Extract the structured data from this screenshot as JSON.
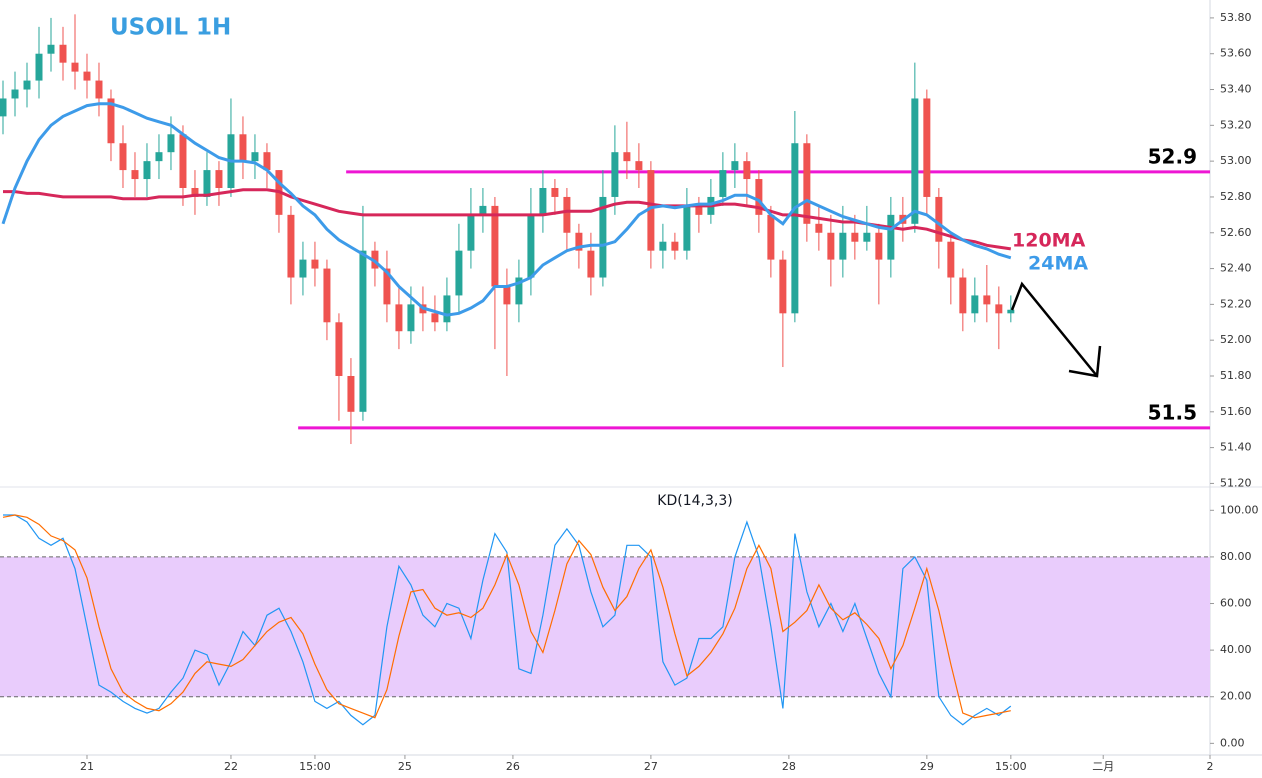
{
  "chart_data": [
    {
      "type": "candlestick",
      "title": "USOIL 1H",
      "x": [
        0,
        1,
        2,
        3,
        4,
        5,
        6,
        7,
        8,
        9,
        10,
        11,
        12,
        13,
        14,
        15,
        16,
        17,
        18,
        19,
        20,
        21,
        22,
        23,
        24,
        25,
        26,
        27,
        28,
        29,
        30,
        31,
        32,
        33,
        34,
        35,
        36,
        37,
        38,
        39,
        40,
        41,
        42,
        43,
        44,
        45,
        46,
        47,
        48,
        49,
        50,
        51,
        52,
        53,
        54,
        55,
        56,
        57,
        58,
        59,
        60,
        61,
        62,
        63,
        64,
        65,
        66,
        67,
        68,
        69,
        70,
        71,
        72,
        73,
        74,
        75,
        76,
        77,
        78,
        79,
        80,
        81,
        82,
        83,
        84
      ],
      "open": [
        53.25,
        53.35,
        53.4,
        53.45,
        53.6,
        53.65,
        53.55,
        53.5,
        53.45,
        53.35,
        53.1,
        52.95,
        52.9,
        53.0,
        53.05,
        53.15,
        52.85,
        52.8,
        52.95,
        52.85,
        53.15,
        53.0,
        53.05,
        52.95,
        52.7,
        52.35,
        52.45,
        52.4,
        52.1,
        51.8,
        51.6,
        52.5,
        52.4,
        52.2,
        52.05,
        52.2,
        52.15,
        52.1,
        52.25,
        52.5,
        52.7,
        52.75,
        52.3,
        52.2,
        52.35,
        52.7,
        52.85,
        52.8,
        52.6,
        52.5,
        52.35,
        52.8,
        53.05,
        53.0,
        52.95,
        52.5,
        52.55,
        52.5,
        52.75,
        52.7,
        52.8,
        52.95,
        53.0,
        52.9,
        52.7,
        52.45,
        52.15,
        53.1,
        52.65,
        52.6,
        52.45,
        52.6,
        52.55,
        52.6,
        52.45,
        52.7,
        52.65,
        53.35,
        52.8,
        52.55,
        52.35,
        52.15,
        52.25,
        52.2,
        52.15
      ],
      "high": [
        53.45,
        53.5,
        53.55,
        53.75,
        53.8,
        53.75,
        53.82,
        53.6,
        53.55,
        53.4,
        53.2,
        53.05,
        53.1,
        53.15,
        53.25,
        53.2,
        52.95,
        53.05,
        53.0,
        53.35,
        53.25,
        53.15,
        53.1,
        52.95,
        52.75,
        52.55,
        52.55,
        52.45,
        52.15,
        51.9,
        52.75,
        52.55,
        52.5,
        52.3,
        52.3,
        52.3,
        52.25,
        52.35,
        52.65,
        52.85,
        52.85,
        52.8,
        52.4,
        52.45,
        52.85,
        52.95,
        52.9,
        52.85,
        52.65,
        52.6,
        52.95,
        53.2,
        53.22,
        53.1,
        53.0,
        52.65,
        52.6,
        52.85,
        52.8,
        52.9,
        53.05,
        53.1,
        53.05,
        52.95,
        52.75,
        52.5,
        53.28,
        53.15,
        52.75,
        52.7,
        52.75,
        52.7,
        52.75,
        52.65,
        52.8,
        52.8,
        53.55,
        53.4,
        52.85,
        52.6,
        52.4,
        52.35,
        52.42,
        52.3,
        52.25
      ],
      "low": [
        53.15,
        53.25,
        53.3,
        53.35,
        53.5,
        53.45,
        53.4,
        53.35,
        53.25,
        53.0,
        52.85,
        52.8,
        52.8,
        52.9,
        52.95,
        52.75,
        52.7,
        52.75,
        52.75,
        52.8,
        52.9,
        52.9,
        52.85,
        52.6,
        52.2,
        52.25,
        52.3,
        52.0,
        51.55,
        51.42,
        51.55,
        52.3,
        52.1,
        51.95,
        51.98,
        52.05,
        52.05,
        52.05,
        52.15,
        52.4,
        52.6,
        51.95,
        51.8,
        52.1,
        52.25,
        52.6,
        52.7,
        52.5,
        52.4,
        52.25,
        52.3,
        52.7,
        52.9,
        52.85,
        52.4,
        52.4,
        52.45,
        52.45,
        52.6,
        52.65,
        52.75,
        52.85,
        52.75,
        52.6,
        52.35,
        51.85,
        52.1,
        52.55,
        52.5,
        52.3,
        52.35,
        52.45,
        52.5,
        52.2,
        52.35,
        52.55,
        52.6,
        52.7,
        52.4,
        52.2,
        52.05,
        52.1,
        52.1,
        51.95,
        52.1
      ],
      "close": [
        53.35,
        53.4,
        53.45,
        53.6,
        53.65,
        53.55,
        53.5,
        53.45,
        53.35,
        53.1,
        52.95,
        52.9,
        53.0,
        53.05,
        53.15,
        52.85,
        52.8,
        52.95,
        52.85,
        53.15,
        53.0,
        53.05,
        52.95,
        52.7,
        52.35,
        52.45,
        52.4,
        52.1,
        51.8,
        51.6,
        52.5,
        52.4,
        52.2,
        52.05,
        52.2,
        52.15,
        52.1,
        52.25,
        52.5,
        52.7,
        52.75,
        52.3,
        52.2,
        52.35,
        52.7,
        52.85,
        52.8,
        52.6,
        52.5,
        52.35,
        52.8,
        53.05,
        53.0,
        52.95,
        52.5,
        52.55,
        52.5,
        52.75,
        52.7,
        52.8,
        52.95,
        53.0,
        52.9,
        52.7,
        52.45,
        52.15,
        53.1,
        52.65,
        52.6,
        52.45,
        52.6,
        52.55,
        52.6,
        52.45,
        52.7,
        52.65,
        53.35,
        52.8,
        52.55,
        52.35,
        52.15,
        52.25,
        52.2,
        52.15,
        52.17
      ],
      "up_color": "#26a69a",
      "down_color": "#ef5350",
      "overlays": [
        {
          "name": "120MA",
          "color": "#d6275a",
          "values": [
            52.83,
            52.83,
            52.82,
            52.82,
            52.81,
            52.8,
            52.8,
            52.8,
            52.8,
            52.8,
            52.79,
            52.79,
            52.79,
            52.8,
            52.8,
            52.8,
            52.81,
            52.81,
            52.82,
            52.83,
            52.84,
            52.84,
            52.84,
            52.83,
            52.8,
            52.78,
            52.76,
            52.74,
            52.72,
            52.71,
            52.7,
            52.7,
            52.7,
            52.7,
            52.7,
            52.7,
            52.7,
            52.7,
            52.7,
            52.7,
            52.7,
            52.7,
            52.7,
            52.7,
            52.7,
            52.7,
            52.71,
            52.72,
            52.72,
            52.72,
            52.74,
            52.76,
            52.77,
            52.77,
            52.76,
            52.75,
            52.75,
            52.75,
            52.75,
            52.75,
            52.76,
            52.76,
            52.75,
            52.74,
            52.72,
            52.7,
            52.7,
            52.69,
            52.68,
            52.67,
            52.66,
            52.66,
            52.65,
            52.64,
            52.63,
            52.62,
            52.63,
            52.62,
            52.6,
            52.58,
            52.56,
            52.55,
            52.53,
            52.52,
            52.51
          ]
        },
        {
          "name": "24MA",
          "color": "#3d9be9",
          "values": [
            52.65,
            52.85,
            53.0,
            53.12,
            53.2,
            53.25,
            53.28,
            53.31,
            53.32,
            53.32,
            53.3,
            53.27,
            53.24,
            53.22,
            53.2,
            53.15,
            53.1,
            53.06,
            53.02,
            53.0,
            53.0,
            52.99,
            52.95,
            52.88,
            52.82,
            52.75,
            52.7,
            52.62,
            52.56,
            52.52,
            52.48,
            52.44,
            52.38,
            52.3,
            52.24,
            52.18,
            52.16,
            52.14,
            52.15,
            52.18,
            52.22,
            52.3,
            52.3,
            52.32,
            52.35,
            52.42,
            52.46,
            52.5,
            52.52,
            52.53,
            52.53,
            52.55,
            52.62,
            52.7,
            52.74,
            52.75,
            52.74,
            52.75,
            52.76,
            52.76,
            52.78,
            52.81,
            52.81,
            52.78,
            52.7,
            52.65,
            52.74,
            52.78,
            52.75,
            52.72,
            52.69,
            52.67,
            52.65,
            52.63,
            52.62,
            52.67,
            52.72,
            52.7,
            52.65,
            52.6,
            52.56,
            52.53,
            52.51,
            52.48,
            52.46
          ]
        }
      ],
      "levels": [
        {
          "value": 52.94,
          "label": "52.9",
          "from": 28.6,
          "color": "#ee16d4"
        },
        {
          "value": 51.51,
          "label": "51.5",
          "from": 24.6,
          "color": "#ee16d4"
        }
      ],
      "ylim": [
        51.18,
        53.9
      ],
      "yticks": [
        {
          "value": 51.2,
          "label": "51.20"
        },
        {
          "value": 51.4,
          "label": "51.40"
        },
        {
          "value": 51.6,
          "label": "51.60"
        },
        {
          "value": 51.8,
          "label": "51.80"
        },
        {
          "value": 52.0,
          "label": "52.00"
        },
        {
          "value": 52.2,
          "label": "52.20"
        },
        {
          "value": 52.4,
          "label": "52.40"
        },
        {
          "value": 52.6,
          "label": "52.60"
        },
        {
          "value": 52.8,
          "label": "52.80"
        },
        {
          "value": 53.0,
          "label": "53.00"
        },
        {
          "value": 53.2,
          "label": "53.20"
        },
        {
          "value": 53.4,
          "label": "53.40"
        },
        {
          "value": 53.6,
          "label": "53.60"
        },
        {
          "value": 53.8,
          "label": "53.80"
        }
      ],
      "xlim": [
        -0.25,
        100.6
      ],
      "xticks": [
        {
          "value": 7,
          "label": "21"
        },
        {
          "value": 19,
          "label": "22"
        },
        {
          "value": 26,
          "label": "15:00"
        },
        {
          "value": 33.5,
          "label": "25"
        },
        {
          "value": 42.5,
          "label": "26"
        },
        {
          "value": 54,
          "label": "27"
        },
        {
          "value": 65.5,
          "label": "28"
        },
        {
          "value": 77,
          "label": "29"
        },
        {
          "value": 84,
          "label": "15:00"
        },
        {
          "value": 91.7,
          "label": "二月"
        },
        {
          "value": 100.6,
          "label": "2"
        }
      ]
    },
    {
      "type": "line",
      "title": "KD(14,3,3)",
      "series": [
        {
          "color": "#2196f3",
          "values": [
            98,
            98,
            95,
            88,
            85,
            88,
            75,
            50,
            25,
            22,
            18,
            15,
            13,
            15,
            22,
            28,
            40,
            38,
            25,
            35,
            48,
            42,
            55,
            58,
            48,
            35,
            18,
            15,
            18,
            12,
            8,
            12,
            50,
            76,
            68,
            55,
            50,
            60,
            58,
            45,
            70,
            90,
            82,
            32,
            30,
            55,
            85,
            92,
            85,
            65,
            50,
            55,
            85,
            85,
            80,
            35,
            25,
            28,
            45,
            45,
            50,
            80,
            95,
            80,
            50,
            15,
            90,
            65,
            50,
            60,
            48,
            60,
            45,
            30,
            20,
            75,
            80,
            70,
            20,
            12,
            8,
            12,
            15,
            12,
            16
          ]
        },
        {
          "color": "#ff6d00",
          "values": [
            97,
            98,
            97,
            94,
            89,
            87,
            83,
            71,
            50,
            32,
            22,
            18,
            15,
            14,
            17,
            22,
            30,
            35,
            34,
            33,
            36,
            42,
            48,
            52,
            54,
            47,
            34,
            23,
            17,
            15,
            13,
            11,
            23,
            46,
            65,
            66,
            58,
            55,
            56,
            54,
            58,
            68,
            81,
            68,
            48,
            39,
            57,
            77,
            87,
            81,
            67,
            57,
            63,
            75,
            83,
            67,
            47,
            29,
            33,
            39,
            47,
            58,
            75,
            85,
            75,
            48,
            52,
            57,
            68,
            58,
            53,
            56,
            51,
            45,
            32,
            42,
            58,
            75,
            57,
            34,
            13,
            11,
            12,
            13,
            14
          ]
        }
      ],
      "band": [
        20,
        80
      ],
      "band_color": "#e9ccfc",
      "ylim": [
        -5,
        110
      ],
      "yticks": [
        {
          "value": 0,
          "label": "0.00"
        },
        {
          "value": 20,
          "label": "20.00"
        },
        {
          "value": 40,
          "label": "40.00"
        },
        {
          "value": 60,
          "label": "60.00"
        },
        {
          "value": 80,
          "label": "80.00"
        },
        {
          "value": 100,
          "label": "100.00"
        }
      ]
    }
  ]
}
